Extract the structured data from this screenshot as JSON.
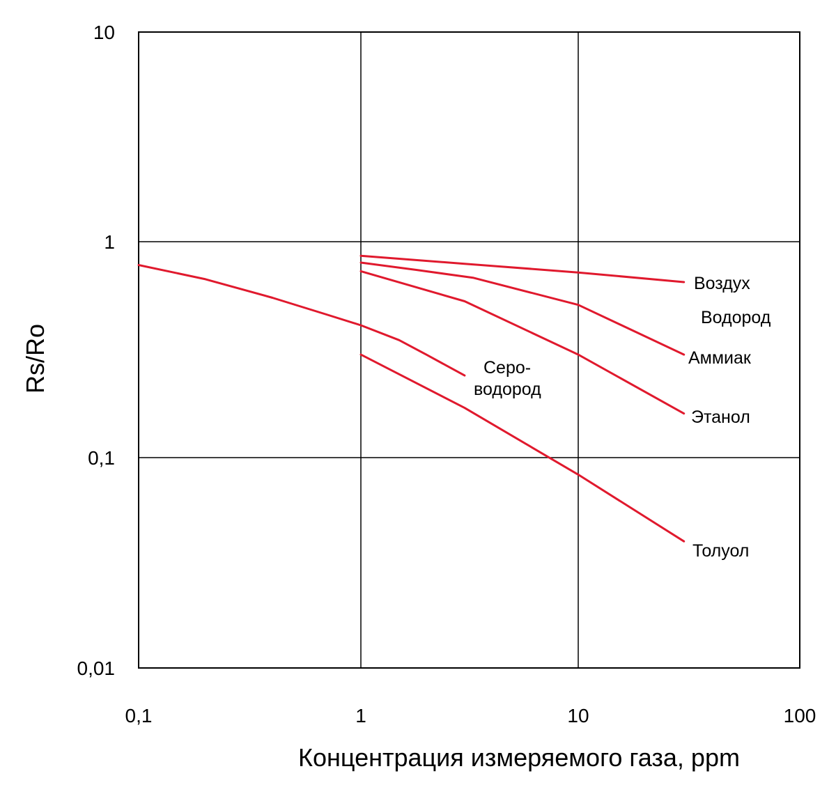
{
  "chart_data": {
    "type": "line",
    "title": "",
    "xlabel": "Концентрация измеряемого газа, ppm",
    "ylabel": "Rs/Ro",
    "x_scale": "log",
    "y_scale": "log",
    "xlim": [
      0.1,
      100
    ],
    "ylim": [
      0.01,
      10
    ],
    "x_ticks": [
      0.1,
      1,
      10,
      100
    ],
    "y_ticks": [
      0.01,
      0.1,
      1,
      10
    ],
    "x_tick_labels": [
      "0,1",
      "1",
      "10",
      "100"
    ],
    "y_tick_labels": [
      "0,01",
      "0,1",
      "1",
      "10"
    ],
    "grid": true,
    "line_color": "#e0192d",
    "series": [
      {
        "name": "Воздух",
        "points": [
          [
            1,
            0.86
          ],
          [
            3,
            0.79
          ],
          [
            10,
            0.72
          ],
          [
            30,
            0.65
          ]
        ]
      },
      {
        "name": "Водород",
        "points": [
          [
            1,
            0.8
          ],
          [
            1.8,
            0.74
          ],
          [
            3.3,
            0.68
          ],
          [
            10,
            0.51
          ],
          [
            30,
            0.3
          ]
        ]
      },
      {
        "name": "Аммиак",
        "points": [
          [
            1,
            0.73
          ],
          [
            3,
            0.53
          ],
          [
            10,
            0.3
          ],
          [
            30,
            0.16
          ]
        ]
      },
      {
        "name": "Этанол",
        "points": [
          [
            1,
            0.3
          ],
          [
            3,
            0.17
          ],
          [
            10,
            0.083
          ],
          [
            30,
            0.04
          ]
        ]
      },
      {
        "name": "Сероводород",
        "points": [
          [
            0.1,
            0.78
          ],
          [
            0.2,
            0.67
          ],
          [
            0.4,
            0.55
          ],
          [
            0.7,
            0.46
          ],
          [
            1,
            0.41
          ],
          [
            1.5,
            0.35
          ],
          [
            2,
            0.3
          ],
          [
            3,
            0.24
          ]
        ]
      }
    ],
    "labels": {
      "vozduh": "Воздух",
      "vodorod": "Водород",
      "ammiak": "Аммиак",
      "etanol": "Этанол",
      "toluol": "Толуол",
      "serovodorod_1": "Серо-",
      "serovodorod_2": "водород"
    }
  }
}
